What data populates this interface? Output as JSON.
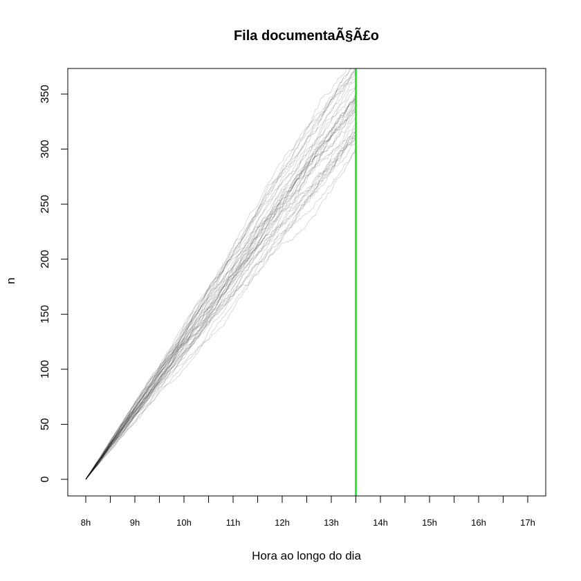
{
  "chart_data": {
    "type": "line",
    "title": "Fila documentaÃ§Ã£o",
    "xlabel": "Hora ao longo do dia",
    "ylabel": "n",
    "xlim": [
      8,
      17
    ],
    "ylim": [
      0,
      360
    ],
    "x_major_ticks": [
      8,
      9,
      10,
      11,
      12,
      13,
      14,
      15,
      16,
      17
    ],
    "x_tick_labels": [
      "8h",
      "9h",
      "10h",
      "11h",
      "12h",
      "13h",
      "14h",
      "15h",
      "16h",
      "17h"
    ],
    "x_minor_ticks": [
      8.5,
      9.5,
      10.5,
      11.5,
      12.5,
      13.5,
      14.5,
      15.5,
      16.5
    ],
    "y_ticks": [
      0,
      50,
      100,
      150,
      200,
      250,
      300,
      350
    ],
    "y_tick_labels": [
      "0",
      "50",
      "100",
      "150",
      "200",
      "250",
      "300",
      "350"
    ],
    "grid": false,
    "legend": "none",
    "simulations": {
      "count": 40,
      "x_start": 8,
      "x_end": 13.5,
      "y_start": 0,
      "y_end_range": [
        315,
        375
      ],
      "color": "#000000",
      "opacity": 0.15
    },
    "vline": {
      "x": 13.5,
      "color": "#00ee00"
    }
  }
}
